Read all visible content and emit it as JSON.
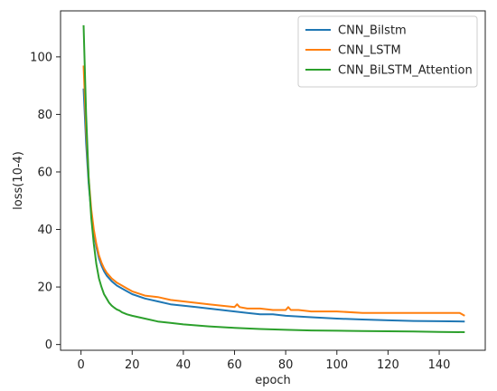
{
  "chart_data": {
    "type": "line",
    "xlabel": "epoch",
    "ylabel": "loss(10-4)",
    "xlim": [
      -8,
      158
    ],
    "ylim": [
      -2,
      116
    ],
    "xticks": [
      0,
      20,
      40,
      60,
      80,
      100,
      120,
      140
    ],
    "yticks": [
      0,
      20,
      40,
      60,
      80,
      100
    ],
    "legend_position": "top-right",
    "series": [
      {
        "name": "CNN_Bilstm",
        "color": "#1f77b4",
        "x": [
          1,
          2,
          3,
          4,
          5,
          6,
          7,
          8,
          9,
          10,
          12,
          14,
          16,
          18,
          20,
          25,
          30,
          35,
          40,
          45,
          50,
          55,
          60,
          65,
          70,
          75,
          80,
          90,
          100,
          110,
          120,
          130,
          140,
          150
        ],
        "y": [
          89,
          70,
          56,
          46,
          39,
          34,
          30,
          27.5,
          25.5,
          24,
          22,
          20.5,
          19.5,
          18.5,
          17.5,
          16,
          15,
          14,
          13.5,
          13,
          12.5,
          12,
          11.5,
          11,
          10.5,
          10.5,
          10,
          9.5,
          9,
          8.7,
          8.4,
          8.2,
          8.1,
          8
        ]
      },
      {
        "name": "CNN_LSTM",
        "color": "#ff7f0e",
        "x": [
          1,
          2,
          3,
          4,
          5,
          6,
          7,
          8,
          9,
          10,
          12,
          14,
          16,
          18,
          20,
          25,
          30,
          35,
          40,
          45,
          50,
          55,
          60,
          61,
          62,
          65,
          70,
          75,
          80,
          81,
          82,
          85,
          90,
          100,
          110,
          120,
          130,
          140,
          145,
          148,
          150
        ],
        "y": [
          97,
          75,
          58,
          47,
          40,
          35,
          31,
          28.5,
          26.5,
          25,
          23,
          21.5,
          20.5,
          19.5,
          18.5,
          17,
          16.5,
          15.5,
          15,
          14.5,
          14,
          13.5,
          13,
          14,
          13,
          12.5,
          12.5,
          12,
          12,
          13,
          12,
          12,
          11.5,
          11.5,
          11,
          11,
          11,
          11,
          11,
          11,
          10
        ]
      },
      {
        "name": "CNN_BiLSTM_Attention",
        "color": "#2ca02c",
        "x": [
          1,
          2,
          3,
          4,
          5,
          6,
          7,
          8,
          9,
          10,
          11,
          12,
          13,
          14,
          15,
          16,
          18,
          20,
          25,
          30,
          35,
          40,
          50,
          60,
          70,
          80,
          90,
          100,
          110,
          120,
          130,
          140,
          150
        ],
        "y": [
          111,
          80,
          58,
          44,
          35,
          28,
          23,
          20,
          17.5,
          16,
          14.5,
          13.5,
          12.8,
          12.2,
          11.8,
          11.2,
          10.5,
          10,
          9,
          8,
          7.5,
          7,
          6.3,
          5.8,
          5.4,
          5.1,
          4.9,
          4.8,
          4.7,
          4.6,
          4.5,
          4.4,
          4.3
        ]
      }
    ]
  }
}
